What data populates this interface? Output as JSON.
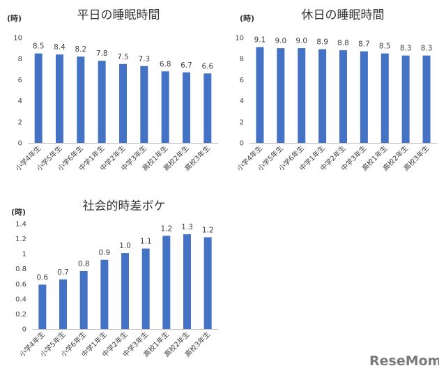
{
  "chart_data": [
    {
      "type": "bar",
      "title": "平日の睡眠時間",
      "ylabel": "(時)",
      "ylim": [
        0,
        10
      ],
      "yticks": [
        "0",
        "2",
        "4",
        "6",
        "8",
        "10"
      ],
      "categories": [
        "小学4年生",
        "小学5年生",
        "小学6年生",
        "中学1年生",
        "中学2年生",
        "中学3年生",
        "高校1年生",
        "高校2年生",
        "高校3年生"
      ],
      "values": [
        8.5,
        8.4,
        8.2,
        7.8,
        7.5,
        7.3,
        6.8,
        6.7,
        6.6
      ],
      "data_labels": [
        "8.5",
        "8.4",
        "8.2",
        "7.8",
        "7.5",
        "7.3",
        "6.8",
        "6.7",
        "6.6"
      ],
      "color": "#4472c4",
      "grid": false,
      "legend": "none"
    },
    {
      "type": "bar",
      "title": "休日の睡眠時間",
      "ylabel": "(時)",
      "ylim": [
        0,
        10
      ],
      "yticks": [
        "0",
        "2",
        "4",
        "6",
        "8",
        "10"
      ],
      "categories": [
        "小学4年生",
        "小学5年生",
        "小学6年生",
        "中学1年生",
        "中学2年生",
        "中学3年生",
        "高校1年生",
        "高校2年生",
        "高校3年生"
      ],
      "values": [
        9.1,
        9.0,
        9.0,
        8.9,
        8.8,
        8.7,
        8.5,
        8.3,
        8.3
      ],
      "data_labels": [
        "9.1",
        "9.0",
        "9.0",
        "8.9",
        "8.8",
        "8.7",
        "8.5",
        "8.3",
        "8.3"
      ],
      "color": "#4472c4",
      "grid": false,
      "legend": "none"
    },
    {
      "type": "bar",
      "title": "社会的時差ボケ",
      "ylabel": "(時)",
      "ylim": [
        0,
        1.4
      ],
      "yticks": [
        "0",
        "0.2",
        "0.4",
        "0.6",
        "0.8",
        "1",
        "1.2",
        "1.4"
      ],
      "categories": [
        "小学4年生",
        "小学5年生",
        "小学6年生",
        "中学1年生",
        "中学2年生",
        "中学3年生",
        "高校1年生",
        "高校2年生",
        "高校3年生"
      ],
      "values": [
        0.59,
        0.66,
        0.77,
        0.92,
        1.01,
        1.07,
        1.24,
        1.26,
        1.22
      ],
      "data_labels": [
        "0.6",
        "0.7",
        "0.8",
        "0.9",
        "1.0",
        "1.1",
        "1.2",
        "1.3",
        "1.2"
      ],
      "color": "#4472c4",
      "grid": false,
      "legend": "none"
    }
  ],
  "watermark": "ReseMom"
}
